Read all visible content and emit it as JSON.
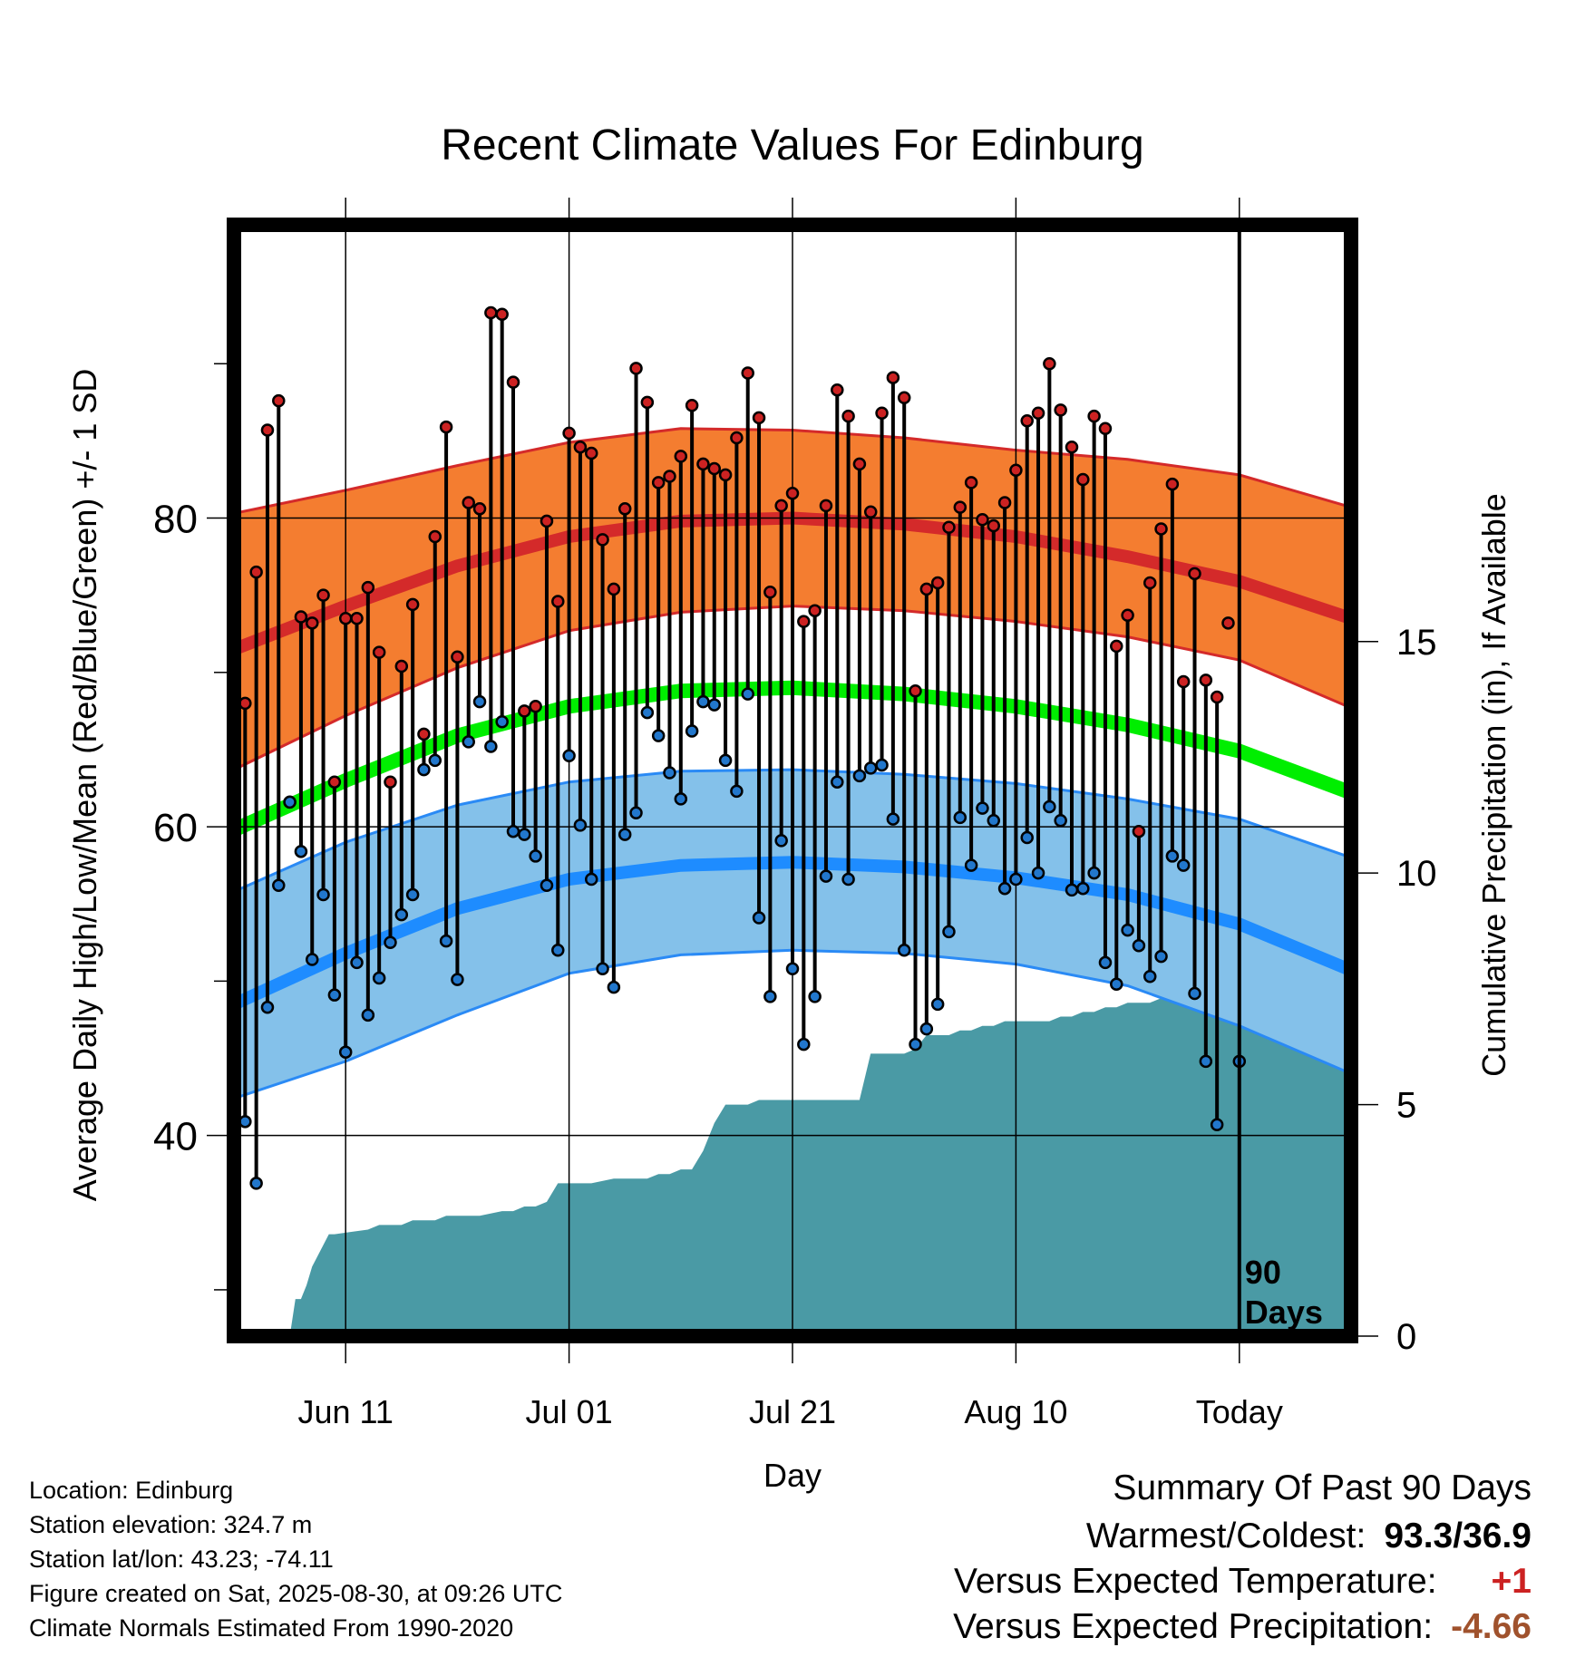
{
  "chart_data": {
    "type": "line",
    "title": "Recent Climate Values For Edinburg",
    "xlabel": "Day",
    "ylabel": "Average Daily High/Low/Mean (Red/Blue/Green) +/- 1 SD",
    "ylabel_right": "Cumulative Precipitation (in), If Available",
    "ylim": [
      27,
      99
    ],
    "y2lim": [
      0,
      24
    ],
    "xlim": [
      -10,
      90
    ],
    "grid": true,
    "x_ticks": [
      {
        "x": 0,
        "label": "Jun 11"
      },
      {
        "x": 20,
        "label": "Jul 01"
      },
      {
        "x": 40,
        "label": "Jul 21"
      },
      {
        "x": 60,
        "label": "Aug 10"
      },
      {
        "x": 80,
        "label": "Today"
      }
    ],
    "y_ticks": [
      40,
      60,
      80
    ],
    "y_minor_ticks": [
      30,
      50,
      70,
      90
    ],
    "y2_ticks": [
      0,
      5,
      10,
      15
    ],
    "today_marker": {
      "x": 80,
      "label_line1": "90",
      "label_line2": "Days"
    },
    "normals": {
      "x": [
        -10,
        0,
        10,
        20,
        30,
        40,
        50,
        60,
        70,
        80,
        90
      ],
      "high_mean": [
        71.5,
        74.3,
        76.9,
        78.8,
        79.8,
        80.0,
        79.6,
        78.8,
        77.5,
        75.9,
        73.5
      ],
      "high_upper": [
        80.3,
        81.8,
        83.4,
        84.9,
        85.8,
        85.7,
        85.2,
        84.4,
        83.8,
        82.8,
        80.7
      ],
      "high_lower": [
        63.7,
        67.2,
        70.3,
        72.7,
        73.9,
        74.3,
        74.0,
        73.3,
        72.3,
        70.8,
        67.7
      ],
      "mean": [
        59.8,
        63.0,
        65.9,
        67.8,
        68.8,
        69.0,
        68.6,
        67.8,
        66.6,
        64.9,
        62.2
      ],
      "low_mean": [
        48.5,
        51.8,
        54.7,
        56.6,
        57.5,
        57.7,
        57.4,
        56.7,
        55.6,
        53.7,
        50.7
      ],
      "low_upper": [
        55.8,
        59.0,
        61.4,
        62.9,
        63.6,
        63.7,
        63.4,
        62.8,
        61.8,
        60.5,
        58.0
      ],
      "low_lower": [
        42.4,
        44.8,
        47.8,
        50.5,
        51.7,
        52.0,
        51.8,
        51.1,
        49.7,
        47.1,
        44.0
      ]
    },
    "series": [
      {
        "name": "High",
        "color": "#cc2222",
        "x": [
          -10,
          -9,
          -8,
          -7,
          -6,
          -5,
          -4,
          -3,
          -2,
          -1,
          0,
          1,
          2,
          3,
          4,
          5,
          6,
          7,
          8,
          9,
          10,
          11,
          12,
          13,
          14,
          15,
          16,
          17,
          18,
          19,
          20,
          21,
          22,
          23,
          24,
          25,
          26,
          27,
          28,
          29,
          30,
          31,
          32,
          33,
          34,
          35,
          36,
          37,
          38,
          39,
          40,
          41,
          42,
          43,
          44,
          45,
          46,
          47,
          48,
          49,
          50,
          51,
          52,
          53,
          54,
          55,
          56,
          57,
          58,
          59,
          60,
          61,
          62,
          63,
          64,
          65,
          66,
          67,
          68,
          69,
          70,
          71,
          72,
          73,
          74,
          75,
          76,
          77,
          78,
          79
        ],
        "values": [
          56.0,
          68.0,
          76.5,
          85.7,
          87.6,
          61.6,
          73.6,
          73.2,
          75.0,
          62.9,
          73.5,
          73.5,
          75.5,
          71.3,
          62.9,
          70.4,
          74.4,
          66.0,
          78.8,
          85.9,
          71.0,
          81.0,
          80.6,
          93.3,
          93.2,
          88.8,
          67.5,
          67.8,
          79.8,
          74.6,
          85.5,
          84.6,
          84.2,
          78.6,
          75.4,
          80.6,
          89.7,
          87.5,
          82.3,
          82.7,
          84.0,
          87.3,
          83.5,
          83.2,
          82.8,
          85.2,
          89.4,
          86.5,
          75.2,
          80.8,
          81.6,
          73.3,
          74.0,
          80.8,
          88.3,
          86.6,
          83.5,
          80.4,
          86.8,
          89.1,
          87.8,
          68.8,
          75.4,
          75.8,
          79.4,
          80.7,
          82.3,
          79.9,
          79.5,
          81.0,
          83.1,
          86.3,
          86.8,
          90.0,
          87.0,
          84.6,
          82.5,
          86.6,
          85.8,
          71.7,
          73.7,
          59.7,
          75.8,
          79.3,
          82.2,
          69.4,
          76.4,
          69.5,
          68.4,
          73.2
        ]
      },
      {
        "name": "Low",
        "color": "#2277cc",
        "x": [
          -10,
          -9,
          -8,
          -7,
          -6,
          -5,
          -4,
          -3,
          -2,
          -1,
          0,
          1,
          2,
          3,
          4,
          5,
          6,
          7,
          8,
          9,
          10,
          11,
          12,
          13,
          14,
          15,
          16,
          17,
          18,
          19,
          20,
          21,
          22,
          23,
          24,
          25,
          26,
          27,
          28,
          29,
          30,
          31,
          32,
          33,
          34,
          35,
          36,
          37,
          38,
          39,
          40,
          41,
          42,
          43,
          44,
          45,
          46,
          47,
          48,
          49,
          50,
          51,
          52,
          53,
          54,
          55,
          56,
          57,
          58,
          59,
          60,
          61,
          62,
          63,
          64,
          65,
          66,
          67,
          68,
          69,
          70,
          71,
          72,
          73,
          74,
          75,
          76,
          77,
          78,
          80
        ],
        "values": [
          39.2,
          40.9,
          36.9,
          48.3,
          56.2,
          61.6,
          58.4,
          51.4,
          55.6,
          49.1,
          45.4,
          51.2,
          47.8,
          50.2,
          52.5,
          54.3,
          55.6,
          63.7,
          64.3,
          52.6,
          50.1,
          65.5,
          68.1,
          65.2,
          66.8,
          59.7,
          59.5,
          58.1,
          56.2,
          52.0,
          64.6,
          60.1,
          56.6,
          50.8,
          49.6,
          59.5,
          60.9,
          67.4,
          65.9,
          63.5,
          61.8,
          66.2,
          68.1,
          67.9,
          64.3,
          62.3,
          68.6,
          54.1,
          49.0,
          59.1,
          50.8,
          45.9,
          49.0,
          56.8,
          62.9,
          56.6,
          63.3,
          63.8,
          64.0,
          60.5,
          52.0,
          45.9,
          46.9,
          48.5,
          53.2,
          60.6,
          57.5,
          61.2,
          60.4,
          56.0,
          56.6,
          59.3,
          57.0,
          61.3,
          60.4,
          55.9,
          56.0,
          57.0,
          51.2,
          49.8,
          53.3,
          52.3,
          50.3,
          51.6,
          58.1,
          57.5,
          49.2,
          44.8,
          40.7,
          44.8
        ]
      }
    ],
    "precip_cumulative": {
      "x": [
        -10,
        -5,
        -4.5,
        -4,
        -3.5,
        -3,
        -1.5,
        -1,
        2,
        3,
        5,
        6,
        8,
        9,
        12,
        14,
        15,
        16,
        17,
        18,
        19,
        22,
        24,
        25,
        27,
        28,
        29,
        30,
        31,
        32,
        33,
        34,
        36,
        37,
        38,
        39,
        40,
        41,
        42,
        43,
        44,
        45,
        46,
        47,
        48,
        50,
        51,
        52,
        53,
        54,
        55,
        56,
        57,
        58,
        59,
        60,
        61,
        62,
        63,
        64,
        65,
        66,
        67,
        68,
        69,
        70,
        71,
        72,
        73,
        74,
        76,
        77,
        78,
        79,
        80,
        90
      ],
      "values": [
        0,
        0,
        0.8,
        0.8,
        1.1,
        1.5,
        2.2,
        2.2,
        2.3,
        2.4,
        2.4,
        2.5,
        2.5,
        2.6,
        2.6,
        2.7,
        2.7,
        2.8,
        2.8,
        2.9,
        3.3,
        3.3,
        3.4,
        3.4,
        3.4,
        3.5,
        3.5,
        3.6,
        3.6,
        4.0,
        4.6,
        5.0,
        5.0,
        5.1,
        5.1,
        5.1,
        5.1,
        5.1,
        5.1,
        5.1,
        5.1,
        5.1,
        5.1,
        6.1,
        6.1,
        6.1,
        6.2,
        6.5,
        6.5,
        6.5,
        6.6,
        6.6,
        6.7,
        6.7,
        6.8,
        6.8,
        6.8,
        6.8,
        6.8,
        6.9,
        6.9,
        7.0,
        7.0,
        7.1,
        7.1,
        7.2,
        7.2,
        7.2,
        7.3,
        7.4,
        7.5,
        7.7,
        7.7,
        7.8,
        8.2,
        8.2
      ]
    }
  },
  "footer": {
    "location": "Location: Edinburg",
    "elevation": "Station elevation: 324.7 m",
    "latlon": "Station lat/lon: 43.23; -74.11",
    "created": "Figure created on Sat, 2025-08-30, at 09:26 UTC",
    "normals_note": "Climate Normals Estimated From 1990-2020"
  },
  "summary": {
    "title": "Summary Of Past 90 Days",
    "warm_cold_label": "Warmest/Coldest:",
    "warm_cold_value": "93.3/36.9",
    "temp_label": "Versus Expected Temperature:",
    "temp_value": "+1",
    "temp_color": "#cc2222",
    "precip_label": "Versus Expected Precipitation:",
    "precip_value": "-4.66",
    "precip_color": "#a0522d"
  }
}
